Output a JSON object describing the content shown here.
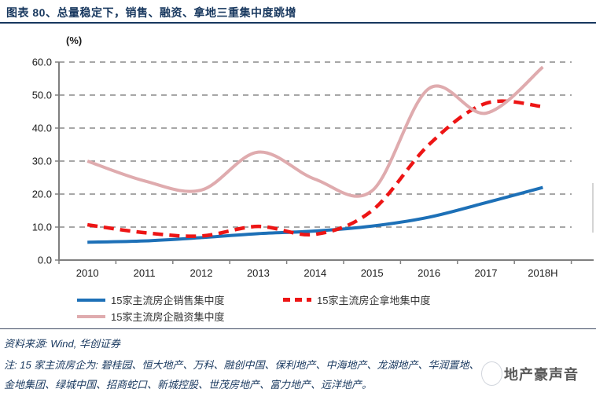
{
  "header": {
    "title": "图表 80、总量稳定下，销售、融资、拿地三重集中度跳增"
  },
  "chart_data": {
    "type": "line",
    "unit_label": "(%)",
    "categories": [
      "2010",
      "2011",
      "2012",
      "2013",
      "2014",
      "2015",
      "2016",
      "2017",
      "2018H"
    ],
    "series": [
      {
        "name": "15家主流房企销售集中度",
        "color": "#1D70B7",
        "line_style": "solid",
        "values": [
          5.4,
          5.8,
          6.8,
          8.0,
          8.8,
          10.3,
          13.0,
          17.4,
          22.0
        ]
      },
      {
        "name": "15家主流房企拿地集中度",
        "color": "#ED1515",
        "line_style": "dashed",
        "values": [
          10.7,
          8.3,
          7.3,
          10.2,
          7.8,
          15.0,
          35.0,
          47.5,
          46.5
        ]
      },
      {
        "name": "15家主流房企融资集中度",
        "color": "#DFABAE",
        "line_style": "solid",
        "values": [
          30.0,
          24.0,
          21.2,
          32.7,
          24.5,
          21.0,
          52.0,
          44.5,
          58.5
        ]
      }
    ],
    "ylim": [
      0,
      60
    ],
    "ytick_labels": [
      "0.0",
      "10.0",
      "20.0",
      "30.0",
      "40.0",
      "50.0",
      "60.0"
    ],
    "grid": "horizontal dashed",
    "legend_position": "bottom"
  },
  "source": {
    "text": "资料来源: Wind, 华创证券"
  },
  "note": {
    "line1": "注: 15 家主流房企为: 碧桂园、恒大地产、万科、融创中国、保利地产、中海地产、龙湖地产、华润置地、",
    "line2": "金地集团、绿城中国、招商蛇口、新城控股、世茂房地产、富力地产、远洋地产。"
  },
  "watermark": {
    "text": "地产豪声音"
  },
  "colors": {
    "title_navy": "#17375E",
    "grid_gray": "#8a8a8a",
    "axis_gray": "#7f7f7f",
    "tick_text": "#1a1a1a"
  }
}
